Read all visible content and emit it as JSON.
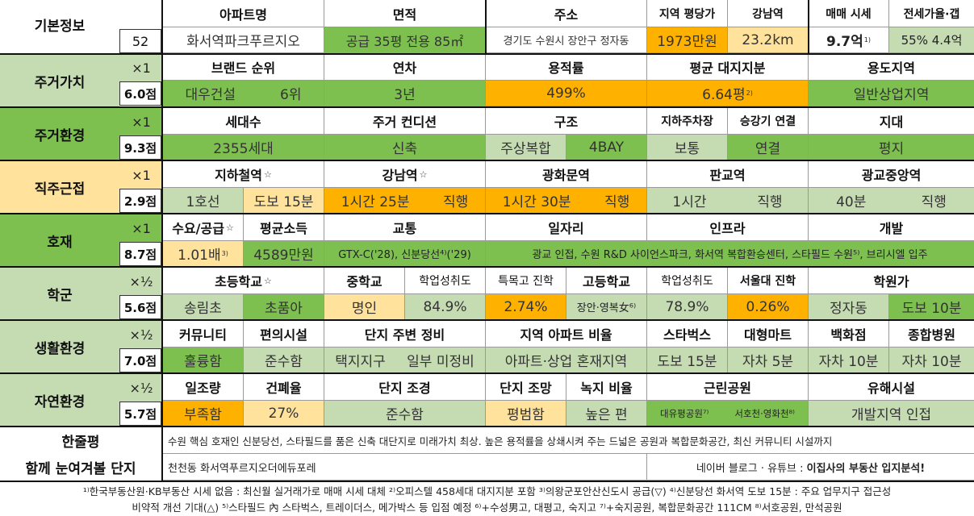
{
  "colors": {
    "green": "#7dc050",
    "light_green": "#c5dcb3",
    "orange": "#ffb100",
    "light_yellow": "#ffe29b",
    "white": "#ffffff"
  },
  "basic": {
    "label": "기본정보",
    "number": "52",
    "apt_header": "아파트명",
    "apt_value": "화서역파크푸르지오",
    "area_header": "면적",
    "area_value": "공급 35평   전용 85㎡",
    "addr_header": "주소",
    "addr_value": "경기도 수원시 장안구 정자동",
    "pyeong_header": "지역 평당가",
    "pyeong_value": "1973만원",
    "gangnam_header": "강남역",
    "gangnam_value": "23.2km",
    "sale_header": "매매 시세",
    "sale_value": "9.7억",
    "sale_note": "1)",
    "jeonse_header": "전세가율·갭",
    "jeonse_value": "55%  4.4억"
  },
  "rows": {
    "residential_value": {
      "label": "주거가치",
      "mult": "×1",
      "score": "6.0점",
      "h1": "브랜드 순위",
      "v1a": "대우건설",
      "v1b": "6위",
      "h2": "연차",
      "v2": "3년",
      "h3": "용적률",
      "v3": "499%",
      "h4": "평균 대지지분",
      "v4": "6.64평",
      "v4_note": "2)",
      "h5": "용도지역",
      "v5": "일반상업지역"
    },
    "residential_env": {
      "label": "주거환경",
      "mult": "×1",
      "score": "9.3점",
      "h1": "세대수",
      "v1": "2355세대",
      "h2": "주거 컨디션",
      "v2": "신축",
      "h3": "구조",
      "v3a": "주상복합",
      "v3b": "4BAY",
      "h4": "지하주차장",
      "v4": "보통",
      "h5": "승강기 연결",
      "v5": "연결",
      "h6": "지대",
      "v6": "평지"
    },
    "commute": {
      "label": "직주근접",
      "mult": "×1",
      "score": "2.9점",
      "h1": "지하철역",
      "v1a": "1호선",
      "v1b": "도보 15분",
      "h2": "강남역",
      "v2a": "1시간 25분",
      "v2b": "직행",
      "h3": "광화문역",
      "v3a": "1시간 30분",
      "v3b": "직행",
      "h4": "판교역",
      "v4a": "1시간",
      "v4b": "직행",
      "h5": "광교중앙역",
      "v5a": "40분",
      "v5b": "직행",
      "star": "☆"
    },
    "development": {
      "label": "호재",
      "mult": "×1",
      "score": "8.7점",
      "h1": "수요/공급",
      "v1": "1.01배",
      "v1_note": "3)",
      "h2": "평균소득",
      "v2": "4589만원",
      "h3": "교통",
      "v3": "GTX-C('28), 신분당선⁴⁾('29)",
      "h4": "일자리",
      "v4": "광교 인접, 수원 R&D 사이언스파크, 화서역 복합환승센터, 스타필드 수원⁵⁾, 브리시엘 입주",
      "h5": "인프라",
      "h6": "개발",
      "star": "☆"
    },
    "school": {
      "label": "학군",
      "mult": "×½",
      "score": "5.6점",
      "h1": "초등학교",
      "v1a": "송림초",
      "v1b": "초품아",
      "h2": "중학교",
      "v2": "명인",
      "h3": "학업성취도",
      "v3": "84.9%",
      "h4": "특목고 진학",
      "v4": "2.74%",
      "h5": "고등학교",
      "v5": "장안·영복女⁶⁾",
      "h6": "학업성취도",
      "v6": "78.9%",
      "h7": "서울대 진학",
      "v7": "0.26%",
      "h8": "학원가",
      "v8a": "정자동",
      "v8b": "도보 10분",
      "star": "☆"
    },
    "living": {
      "label": "생활환경",
      "mult": "×½",
      "score": "7.0점",
      "h1": "커뮤니티",
      "v1": "훌륭함",
      "h2": "편의시설",
      "v2": "준수함",
      "h3": "단지 주변 정비",
      "v3a": "택지지구",
      "v3b": "일부 미정비",
      "h4": "지역 아파트 비율",
      "v4": "아파트·상업 혼재지역",
      "h5": "스타벅스",
      "v5": "도보 15분",
      "h6": "대형마트",
      "v6": "자차 5분",
      "h7": "백화점",
      "v7": "자차 10분",
      "h8": "종합병원",
      "v8": "자차 10분"
    },
    "nature": {
      "label": "자연환경",
      "mult": "×½",
      "score": "5.7점",
      "h1": "일조량",
      "v1": "부족함",
      "h2": "건폐율",
      "v2": "27%",
      "h3": "단지 조경",
      "v3": "준수함",
      "h4": "단지 조망",
      "v4": "평범함",
      "h5": "녹지 비율",
      "v5": "높은 편",
      "h6": "근린공원",
      "v6a": "대유평공원⁷⁾",
      "v6b": "서호천·영화천⁸⁾",
      "h7": "유해시설",
      "v7": "개발지역 인접"
    }
  },
  "summary": {
    "label": "한줄평",
    "text": "수원 핵심 호재인 신분당선, 스타필드를 품은 신축 대단지로 미래가치 최상. 높은 용적률을 상쇄시켜 주는 드넓은 공원과 복합문화공간, 최신 커뮤니티 시설까지"
  },
  "together": {
    "label": "함께 눈여겨볼 단지",
    "text": "천천동 화서역푸르지오더에듀포레",
    "source_prefix": "네이버 블로그 · 유튜브 :",
    "source_name": "이집사의 부동산 입지분석!"
  },
  "footnotes": {
    "line1": "¹⁾한국부동산원·KB부동산 시세 없음 : 최신월 실거래가로 매매 시세 대체  ²⁾오피스텔 458세대 대지지분 포함  ³⁾의왕군포안산신도시 공급(▽)  ⁴⁾신분당선 화서역 도보 15분 : 주요 업무지구 접근성",
    "line2": "비약적 개선 기대(△)  ⁵⁾스타필드 內 스타벅스, 트레이더스, 메가박스 등 입점 예정  ⁶⁾+수성男고, 대평고, 숙지고  ⁷⁾+숙지공원, 복합문화공간 111CM  ⁸⁾서호공원, 만석공원"
  }
}
